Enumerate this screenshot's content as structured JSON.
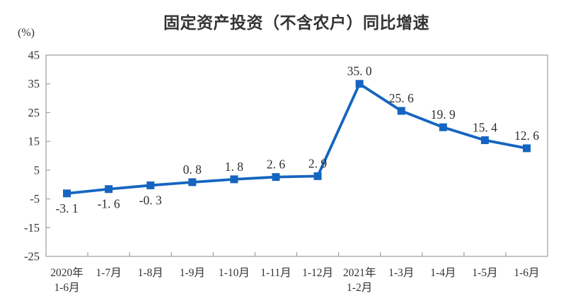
{
  "chart_data": {
    "type": "line",
    "title": "固定资产投资（不含农户）同比增速",
    "unit_label": "(%)",
    "categories": [
      [
        "2020年",
        "1-6月"
      ],
      [
        "1-7月"
      ],
      [
        "1-8月"
      ],
      [
        "1-9月"
      ],
      [
        "1-10月"
      ],
      [
        "1-11月"
      ],
      [
        "1-12月"
      ],
      [
        "2021年",
        "1-2月"
      ],
      [
        "1-3月"
      ],
      [
        "1-4月"
      ],
      [
        "1-5月"
      ],
      [
        "1-6月"
      ]
    ],
    "values": [
      -3.1,
      -1.6,
      -0.3,
      0.8,
      1.8,
      2.6,
      2.9,
      35.0,
      25.6,
      19.9,
      15.4,
      12.6
    ],
    "labels": [
      "-3. 1",
      "-1. 6",
      "-0. 3",
      "0. 8",
      "1. 8",
      "2. 6",
      "2. 9",
      "35. 0",
      "25. 6",
      "19. 9",
      "15. 4",
      "12. 6"
    ],
    "ylim": [
      -25,
      45
    ],
    "ytick_step": 10,
    "yticks": [
      45,
      35,
      25,
      15,
      5,
      -5,
      -15,
      -25
    ],
    "xlabel": "",
    "ylabel": "",
    "grid": false,
    "legend": "none",
    "line_color": "#1565C0",
    "marker": "square",
    "axis_color": "#9e9e9e",
    "text_color": "#333333"
  }
}
